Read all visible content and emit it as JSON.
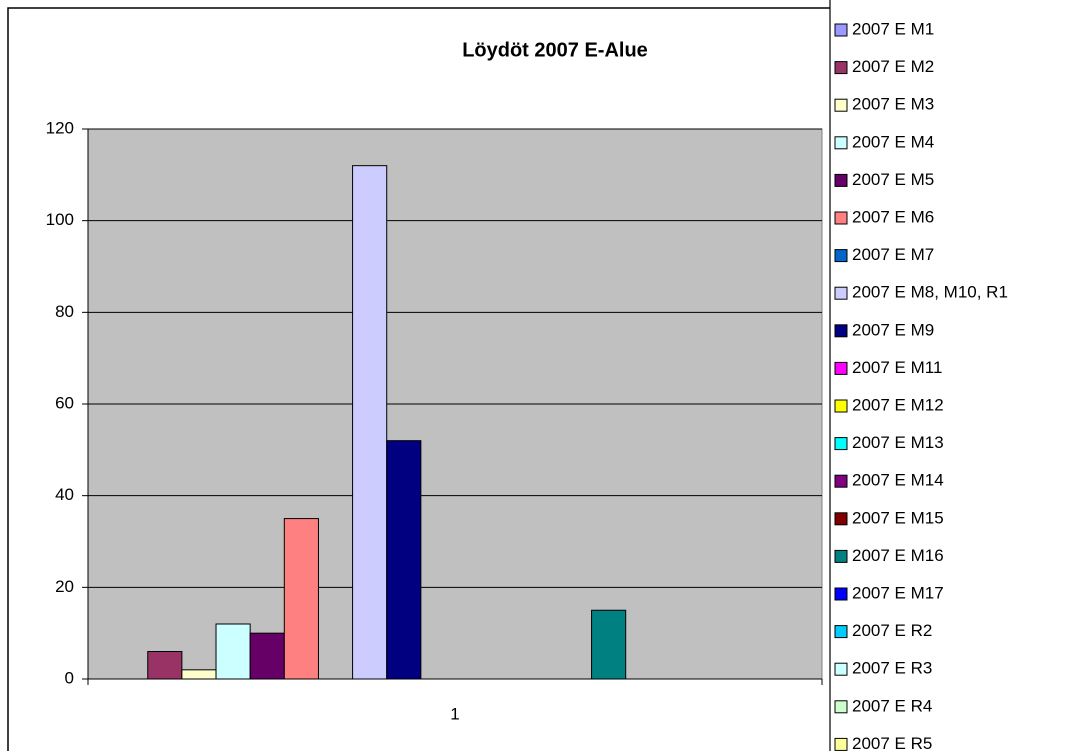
{
  "chart_data": {
    "type": "bar",
    "title": "Löydöt 2007 E-Alue",
    "categories": [
      "1"
    ],
    "series": [
      {
        "name": "2007 E M1",
        "color": "#9999ff",
        "values": [
          0
        ]
      },
      {
        "name": "2007 E M2",
        "color": "#993366",
        "values": [
          6
        ]
      },
      {
        "name": "2007 E M3",
        "color": "#ffffcc",
        "values": [
          2
        ]
      },
      {
        "name": "2007 E M4",
        "color": "#ccffff",
        "values": [
          12
        ]
      },
      {
        "name": "2007 E M5",
        "color": "#660066",
        "values": [
          10
        ]
      },
      {
        "name": "2007 E M6",
        "color": "#ff8080",
        "values": [
          35
        ]
      },
      {
        "name": "2007 E M7",
        "color": "#0066cc",
        "values": [
          0
        ]
      },
      {
        "name": "2007 E M8, M10, R1",
        "color": "#ccccff",
        "values": [
          112
        ]
      },
      {
        "name": "2007 E M9",
        "color": "#000080",
        "values": [
          52
        ]
      },
      {
        "name": "2007 E M11",
        "color": "#ff00ff",
        "values": [
          0
        ]
      },
      {
        "name": "2007 E M12",
        "color": "#ffff00",
        "values": [
          0
        ]
      },
      {
        "name": "2007 E M13",
        "color": "#00ffff",
        "values": [
          0
        ]
      },
      {
        "name": "2007 E M14",
        "color": "#800080",
        "values": [
          0
        ]
      },
      {
        "name": "2007 E M15",
        "color": "#800000",
        "values": [
          0
        ]
      },
      {
        "name": "2007 E M16",
        "color": "#008080",
        "values": [
          15
        ]
      },
      {
        "name": "2007 E M17",
        "color": "#0000ff",
        "values": [
          0
        ]
      },
      {
        "name": "2007 E R2",
        "color": "#00ccff",
        "values": [
          0
        ]
      },
      {
        "name": "2007 E R3",
        "color": "#ccffff",
        "values": [
          0
        ]
      },
      {
        "name": "2007 E R4",
        "color": "#ccffcc",
        "values": [
          0
        ]
      },
      {
        "name": "2007 E R5",
        "color": "#ffff99",
        "values": [
          0
        ]
      }
    ],
    "ylim": [
      0,
      120
    ],
    "yticks": [
      0,
      20,
      40,
      60,
      80,
      100,
      120
    ],
    "grid": true,
    "legend": "right"
  }
}
